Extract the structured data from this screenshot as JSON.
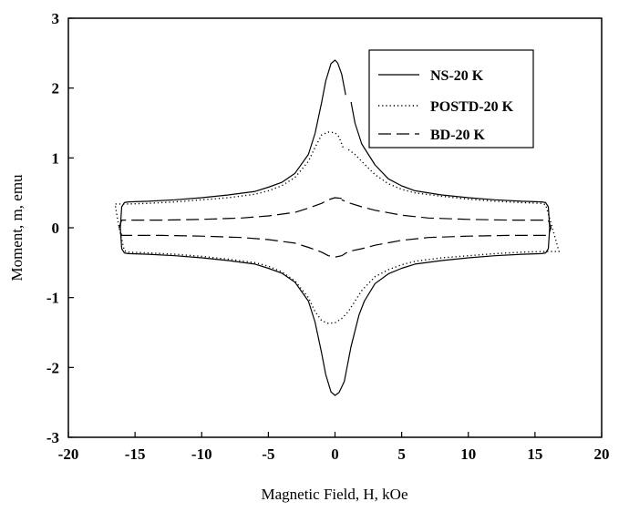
{
  "chart_data": {
    "type": "line",
    "title": "",
    "xlabel": "Magnetic Field, H, kOe",
    "ylabel": "Moment, m, emu",
    "xlim": [
      -20,
      20
    ],
    "ylim": [
      -3,
      3
    ],
    "xticks": [
      -20,
      -15,
      -10,
      -5,
      0,
      5,
      10,
      15,
      20
    ],
    "yticks": [
      -3,
      -2,
      -1,
      0,
      1,
      2,
      3
    ],
    "x_tick_labels": [
      "-20",
      "-15",
      "-10",
      "-5",
      "0",
      "5",
      "10",
      "15",
      "20"
    ],
    "y_tick_labels": [
      "-3",
      "-2",
      "-1",
      "0",
      "1",
      "2",
      "3"
    ],
    "grid": false,
    "legend_position": "top-right",
    "series": [
      {
        "name": "NS-20 K",
        "style": "solid",
        "color": "#000000",
        "x": [
          0.8,
          0.5,
          0.2,
          0.0,
          -0.3,
          -0.7,
          -1.0,
          -1.5,
          -2.0,
          -3.0,
          -4.0,
          -5.0,
          -6.0,
          -8.0,
          -10.0,
          -12.0,
          -14.0,
          -15.5,
          -15.8,
          -16.0,
          -16.1,
          -16.0,
          -15.8,
          -15.5,
          -14.0,
          -12.0,
          -10.0,
          -8.0,
          -6.0,
          -5.0,
          -4.0,
          -3.0,
          -2.0,
          -1.5,
          -1.0,
          -0.7,
          -0.3,
          0.0,
          0.3,
          0.7,
          1.2,
          1.8,
          2.2,
          3.0,
          4.0,
          5.0,
          6.0,
          8.0,
          10.0,
          12.0,
          14.0,
          15.5,
          15.8,
          16.0,
          16.1,
          16.0,
          15.8,
          15.5,
          14.0,
          12.0,
          10.0,
          8.0,
          6.0,
          5.0,
          4.0,
          3.0,
          2.0,
          1.5,
          1.2
        ],
        "y": [
          1.9,
          2.2,
          2.36,
          2.4,
          2.35,
          2.1,
          1.8,
          1.35,
          1.05,
          0.78,
          0.65,
          0.58,
          0.52,
          0.47,
          0.43,
          0.4,
          0.38,
          0.37,
          0.36,
          0.3,
          0.0,
          -0.3,
          -0.36,
          -0.37,
          -0.38,
          -0.4,
          -0.43,
          -0.47,
          -0.52,
          -0.58,
          -0.65,
          -0.78,
          -1.05,
          -1.35,
          -1.8,
          -2.1,
          -2.35,
          -2.4,
          -2.36,
          -2.2,
          -1.7,
          -1.25,
          -1.05,
          -0.8,
          -0.66,
          -0.58,
          -0.52,
          -0.47,
          -0.43,
          -0.4,
          -0.38,
          -0.37,
          -0.36,
          -0.3,
          0.0,
          0.3,
          0.36,
          0.37,
          0.38,
          0.4,
          0.43,
          0.47,
          0.53,
          0.6,
          0.7,
          0.9,
          1.2,
          1.5,
          1.8
        ]
      },
      {
        "name": "POSTD-20 K",
        "style": "dotted",
        "color": "#000000",
        "x": [
          0.6,
          0.3,
          0.0,
          -0.5,
          -1.0,
          -1.5,
          -2.0,
          -3.0,
          -4.0,
          -5.0,
          -6.0,
          -8.0,
          -10.0,
          -12.0,
          -14.0,
          -15.5,
          -16.5,
          -16.2,
          -15.8,
          -15.5,
          -14.0,
          -12.0,
          -10.0,
          -8.0,
          -6.0,
          -5.0,
          -4.0,
          -3.0,
          -2.0,
          -1.5,
          -1.0,
          -0.5,
          0.0,
          0.5,
          1.0,
          1.5,
          2.0,
          3.0,
          4.0,
          5.0,
          6.0,
          8.0,
          10.0,
          12.0,
          14.0,
          15.5,
          16.8,
          16.3,
          15.8,
          15.5,
          14.0,
          12.0,
          10.0,
          8.0,
          6.0,
          5.0,
          4.0,
          3.0,
          2.0,
          1.5,
          1.0
        ],
        "y": [
          1.15,
          1.3,
          1.36,
          1.37,
          1.33,
          1.15,
          0.95,
          0.72,
          0.6,
          0.53,
          0.48,
          0.43,
          0.4,
          0.37,
          0.35,
          0.34,
          0.34,
          0.0,
          -0.33,
          -0.35,
          -0.36,
          -0.38,
          -0.41,
          -0.45,
          -0.5,
          -0.55,
          -0.63,
          -0.76,
          -1.0,
          -1.2,
          -1.33,
          -1.37,
          -1.36,
          -1.3,
          -1.2,
          -1.05,
          -0.9,
          -0.7,
          -0.6,
          -0.53,
          -0.48,
          -0.43,
          -0.4,
          -0.37,
          -0.35,
          -0.34,
          -0.34,
          0.0,
          0.33,
          0.35,
          0.36,
          0.38,
          0.41,
          0.45,
          0.5,
          0.55,
          0.63,
          0.76,
          0.95,
          1.05,
          1.12
        ]
      },
      {
        "name": "BD-20 K",
        "style": "dashed",
        "color": "#000000",
        "x": [
          0.5,
          0.0,
          -0.5,
          -1.0,
          -2.0,
          -3.0,
          -5.0,
          -7.0,
          -10.0,
          -13.0,
          -16.0,
          -16.2,
          -16.0,
          -13.0,
          -10.0,
          -7.0,
          -5.0,
          -3.0,
          -2.0,
          -1.0,
          -0.5,
          0.0,
          0.5,
          1.0,
          2.0,
          3.0,
          5.0,
          7.0,
          10.0,
          13.0,
          16.0,
          16.2,
          16.0,
          13.0,
          10.0,
          7.0,
          5.0,
          3.0,
          2.0,
          1.0,
          0.5
        ],
        "y": [
          0.42,
          0.43,
          0.4,
          0.35,
          0.28,
          0.22,
          0.17,
          0.14,
          0.12,
          0.11,
          0.11,
          0.0,
          -0.11,
          -0.11,
          -0.12,
          -0.14,
          -0.17,
          -0.22,
          -0.28,
          -0.35,
          -0.4,
          -0.42,
          -0.4,
          -0.34,
          -0.3,
          -0.25,
          -0.18,
          -0.14,
          -0.12,
          -0.11,
          -0.11,
          0.0,
          0.11,
          0.11,
          0.12,
          0.14,
          0.18,
          0.25,
          0.3,
          0.36,
          0.4
        ]
      }
    ]
  }
}
